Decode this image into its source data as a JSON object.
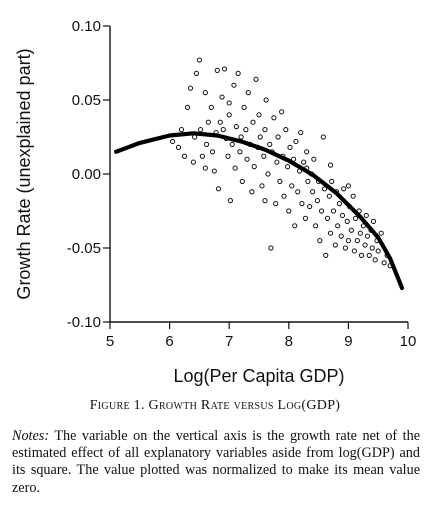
{
  "chart_data": {
    "type": "scatter",
    "title": "",
    "xlabel": "Log(Per Capita GDP)",
    "ylabel": "Growth Rate (unexplained part)",
    "xlim": [
      5,
      10
    ],
    "ylim": [
      -0.1,
      0.1
    ],
    "x_ticks": [
      "5",
      "6",
      "7",
      "8",
      "9",
      "10"
    ],
    "y_ticks": [
      "0.10",
      "0.05",
      "0.00",
      "-0.05",
      "-0.10"
    ],
    "grid": false,
    "fit_line": {
      "type": "quadratic",
      "points": [
        [
          5.1,
          0.015
        ],
        [
          5.5,
          0.021
        ],
        [
          6.0,
          0.026
        ],
        [
          6.4,
          0.0275
        ],
        [
          6.8,
          0.026
        ],
        [
          7.2,
          0.022
        ],
        [
          7.6,
          0.0165
        ],
        [
          8.0,
          0.009
        ],
        [
          8.4,
          -0.0005
        ],
        [
          8.8,
          -0.013
        ],
        [
          9.2,
          -0.029
        ],
        [
          9.5,
          -0.043
        ],
        [
          9.7,
          -0.057
        ],
        [
          9.9,
          -0.077
        ]
      ]
    },
    "points": [
      [
        6.05,
        0.022
      ],
      [
        6.15,
        0.018
      ],
      [
        6.2,
        0.03
      ],
      [
        6.25,
        0.012
      ],
      [
        6.3,
        0.045
      ],
      [
        6.35,
        0.058
      ],
      [
        6.4,
        0.008
      ],
      [
        6.42,
        0.025
      ],
      [
        6.45,
        0.068
      ],
      [
        6.5,
        0.077
      ],
      [
        6.52,
        0.03
      ],
      [
        6.55,
        0.012
      ],
      [
        6.6,
        0.004
      ],
      [
        6.62,
        0.02
      ],
      [
        6.65,
        0.035
      ],
      [
        6.7,
        0.045
      ],
      [
        6.72,
        0.015
      ],
      [
        6.75,
        0.002
      ],
      [
        6.78,
        0.028
      ],
      [
        6.8,
        0.07
      ],
      [
        6.82,
        -0.01
      ],
      [
        6.85,
        0.035
      ],
      [
        6.88,
        0.052
      ],
      [
        6.9,
        0.03
      ],
      [
        6.92,
        0.071
      ],
      [
        6.95,
        0.024
      ],
      [
        6.98,
        0.012
      ],
      [
        7.0,
        0.04
      ],
      [
        7.02,
        -0.018
      ],
      [
        7.05,
        0.02
      ],
      [
        7.08,
        0.06
      ],
      [
        7.1,
        0.004
      ],
      [
        7.12,
        0.032
      ],
      [
        7.15,
        0.068
      ],
      [
        7.18,
        0.015
      ],
      [
        7.2,
        0.025
      ],
      [
        7.22,
        -0.005
      ],
      [
        7.25,
        0.045
      ],
      [
        7.28,
        0.03
      ],
      [
        7.3,
        0.01
      ],
      [
        7.32,
        0.055
      ],
      [
        7.35,
        0.02
      ],
      [
        7.38,
        -0.012
      ],
      [
        7.4,
        0.035
      ],
      [
        7.42,
        0.005
      ],
      [
        7.45,
        0.064
      ],
      [
        7.48,
        0.018
      ],
      [
        7.5,
        0.04
      ],
      [
        7.52,
        0.025
      ],
      [
        7.55,
        -0.008
      ],
      [
        7.58,
        0.012
      ],
      [
        7.6,
        0.03
      ],
      [
        7.62,
        0.05
      ],
      [
        7.65,
        0.0
      ],
      [
        7.68,
        0.02
      ],
      [
        7.7,
        -0.05
      ],
      [
        7.72,
        0.015
      ],
      [
        7.75,
        0.038
      ],
      [
        7.78,
        -0.02
      ],
      [
        7.8,
        0.008
      ],
      [
        7.82,
        0.025
      ],
      [
        7.85,
        -0.005
      ],
      [
        7.88,
        0.042
      ],
      [
        7.9,
        0.012
      ],
      [
        7.92,
        -0.015
      ],
      [
        7.95,
        0.03
      ],
      [
        7.98,
        0.005
      ],
      [
        8.0,
        -0.025
      ],
      [
        8.02,
        0.018
      ],
      [
        8.05,
        -0.008
      ],
      [
        8.08,
        0.01
      ],
      [
        8.1,
        -0.035
      ],
      [
        8.12,
        0.022
      ],
      [
        8.15,
        -0.012
      ],
      [
        8.18,
        0.002
      ],
      [
        8.2,
        0.028
      ],
      [
        8.22,
        -0.02
      ],
      [
        8.25,
        0.008
      ],
      [
        8.28,
        -0.03
      ],
      [
        8.3,
        0.015
      ],
      [
        8.32,
        -0.005
      ],
      [
        8.35,
        -0.022
      ],
      [
        8.38,
        0.0
      ],
      [
        8.4,
        -0.012
      ],
      [
        8.42,
        0.01
      ],
      [
        8.45,
        -0.035
      ],
      [
        8.48,
        -0.018
      ],
      [
        8.5,
        -0.005
      ],
      [
        8.52,
        -0.045
      ],
      [
        8.55,
        -0.025
      ],
      [
        8.58,
        0.025
      ],
      [
        8.6,
        -0.01
      ],
      [
        8.62,
        -0.055
      ],
      [
        8.65,
        -0.03
      ],
      [
        8.68,
        -0.015
      ],
      [
        8.7,
        -0.04
      ],
      [
        8.72,
        -0.005
      ],
      [
        8.75,
        -0.025
      ],
      [
        8.78,
        -0.048
      ],
      [
        8.8,
        -0.012
      ],
      [
        8.82,
        -0.035
      ],
      [
        8.85,
        -0.02
      ],
      [
        8.88,
        -0.042
      ],
      [
        8.9,
        -0.028
      ],
      [
        8.92,
        -0.01
      ],
      [
        8.95,
        -0.05
      ],
      [
        8.98,
        -0.032
      ],
      [
        9.0,
        -0.045
      ],
      [
        9.02,
        -0.022
      ],
      [
        9.05,
        -0.038
      ],
      [
        9.08,
        -0.015
      ],
      [
        9.1,
        -0.052
      ],
      [
        9.12,
        -0.03
      ],
      [
        9.15,
        -0.045
      ],
      [
        9.18,
        -0.025
      ],
      [
        9.2,
        -0.04
      ],
      [
        9.22,
        -0.055
      ],
      [
        9.25,
        -0.035
      ],
      [
        9.28,
        -0.048
      ],
      [
        9.3,
        -0.028
      ],
      [
        9.32,
        -0.042
      ],
      [
        9.35,
        -0.055
      ],
      [
        9.38,
        -0.038
      ],
      [
        9.4,
        -0.05
      ],
      [
        9.42,
        -0.032
      ],
      [
        9.45,
        -0.058
      ],
      [
        9.48,
        -0.045
      ],
      [
        9.5,
        -0.052
      ],
      [
        9.55,
        -0.04
      ],
      [
        9.6,
        -0.06
      ],
      [
        9.65,
        -0.055
      ],
      [
        9.7,
        -0.062
      ],
      [
        7.6,
        -0.018
      ],
      [
        8.3,
        0.004
      ],
      [
        8.7,
        0.006
      ],
      [
        9.0,
        -0.008
      ],
      [
        6.6,
        0.055
      ],
      [
        7.0,
        0.048
      ]
    ]
  },
  "caption": {
    "text": "Figure 1. Growth Rate versus Log(GDP)"
  },
  "notes": {
    "lead": "Notes:",
    "body": "The variable on the vertical axis is the growth rate net of the estimated effect of all explanatory variables aside from log(GDP) and its square. The value plotted was normalized to make its mean value zero."
  }
}
